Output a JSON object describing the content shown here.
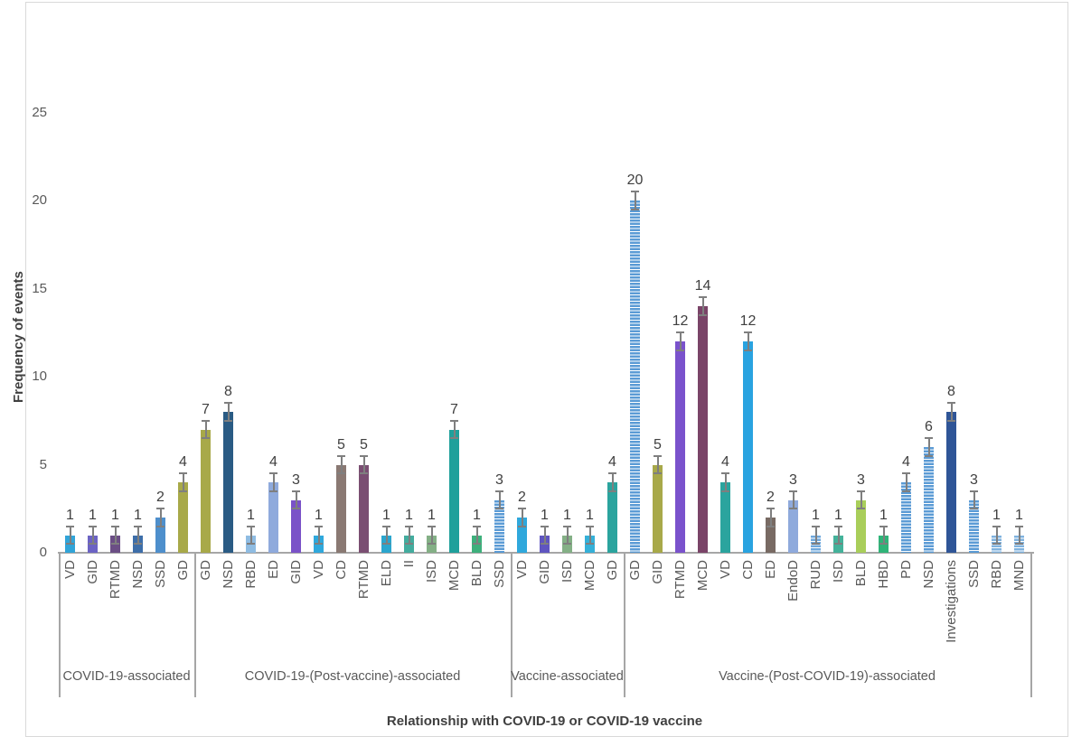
{
  "chart_data": {
    "type": "bar",
    "title": "",
    "xlabel": "Relationship with COVID-19 or COVID-19 vaccine",
    "ylabel": "Frequency of events",
    "ylim": [
      0,
      25
    ],
    "yticks": [
      0,
      5,
      10,
      15,
      20,
      25
    ],
    "grid": false,
    "legend": false,
    "error_bar": 0.5,
    "groups": [
      {
        "label": "COVID-19-associated",
        "bars": [
          {
            "cat": "VD",
            "value": 1,
            "color": "#31a4d8"
          },
          {
            "cat": "GID",
            "value": 1,
            "color": "#6c63c4"
          },
          {
            "cat": "RTMD",
            "value": 1,
            "color": "#6b4e85"
          },
          {
            "cat": "NSD",
            "value": 1,
            "color": "#3d6ea9"
          },
          {
            "cat": "SSD",
            "value": 2,
            "color": "#4e8fcc"
          },
          {
            "cat": "GD",
            "value": 4,
            "color": "#a8a949"
          }
        ]
      },
      {
        "label": "COVID-19-(Post-vaccine)-associated",
        "bars": [
          {
            "cat": "GD",
            "value": 7,
            "color": "#a8a949"
          },
          {
            "cat": "NSD",
            "value": 8,
            "color": "#2a5b84"
          },
          {
            "cat": "RBD",
            "value": 1,
            "color": "#8fbce2"
          },
          {
            "cat": "ED",
            "value": 4,
            "color": "#8faadc"
          },
          {
            "cat": "GID",
            "value": 3,
            "color": "#7a52c8"
          },
          {
            "cat": "VD",
            "value": 1,
            "color": "#2fa8dc"
          },
          {
            "cat": "CD",
            "value": 5,
            "color": "#8a7973"
          },
          {
            "cat": "RTMD",
            "value": 5,
            "color": "#7a4e72"
          },
          {
            "cat": "ELD",
            "value": 1,
            "color": "#2ba6ce"
          },
          {
            "cat": "II",
            "value": 1,
            "color": "#43ac9e"
          },
          {
            "cat": "ISD",
            "value": 1,
            "color": "#84b086"
          },
          {
            "cat": "MCD",
            "value": 7,
            "color": "#1fa09b"
          },
          {
            "cat": "BLD",
            "value": 1,
            "color": "#3eb07c"
          },
          {
            "cat": "SSD",
            "value": 3,
            "color": "#5b9bd5",
            "pattern": "stripes"
          }
        ]
      },
      {
        "label": "Vaccine-associated",
        "bars": [
          {
            "cat": "VD",
            "value": 2,
            "color": "#2fa8dc"
          },
          {
            "cat": "GID",
            "value": 1,
            "color": "#5f55c0"
          },
          {
            "cat": "ISD",
            "value": 1,
            "color": "#84b086"
          },
          {
            "cat": "MCD",
            "value": 1,
            "color": "#35b0d8"
          },
          {
            "cat": "GD",
            "value": 4,
            "color": "#2ba49e"
          }
        ]
      },
      {
        "label": "Vaccine-(Post-COVID-19)-associated",
        "bars": [
          {
            "cat": "GD",
            "value": 20,
            "color": "#5b9bd5",
            "pattern": "stripes"
          },
          {
            "cat": "GID",
            "value": 5,
            "color": "#a8a949"
          },
          {
            "cat": "RTMD",
            "value": 12,
            "color": "#7a52cc"
          },
          {
            "cat": "MCD",
            "value": 14,
            "color": "#7a4468"
          },
          {
            "cat": "VD",
            "value": 4,
            "color": "#2ba49e"
          },
          {
            "cat": "CD",
            "value": 12,
            "color": "#29a3e0"
          },
          {
            "cat": "ED",
            "value": 2,
            "color": "#786a63"
          },
          {
            "cat": "EndoD",
            "value": 3,
            "color": "#8faadc"
          },
          {
            "cat": "RUD",
            "value": 1,
            "color": "#6fa8dc",
            "pattern": "stripes"
          },
          {
            "cat": "ISD",
            "value": 1,
            "color": "#44b29a"
          },
          {
            "cat": "BLD",
            "value": 3,
            "color": "#a9ce5a"
          },
          {
            "cat": "HBD",
            "value": 1,
            "color": "#2fb478"
          },
          {
            "cat": "PD",
            "value": 4,
            "color": "#5b9bd5",
            "pattern": "stripes"
          },
          {
            "cat": "NSD",
            "value": 6,
            "color": "#5b9bd5",
            "pattern": "stripes"
          },
          {
            "cat": "Investigations",
            "value": 8,
            "color": "#2f5597"
          },
          {
            "cat": "SSD",
            "value": 3,
            "color": "#5b9bd5",
            "pattern": "stripes"
          },
          {
            "cat": "RBD",
            "value": 1,
            "color": "#7fb2de",
            "pattern": "stripes"
          },
          {
            "cat": "MND",
            "value": 1,
            "color": "#7fb2de",
            "pattern": "stripes"
          }
        ]
      }
    ]
  }
}
